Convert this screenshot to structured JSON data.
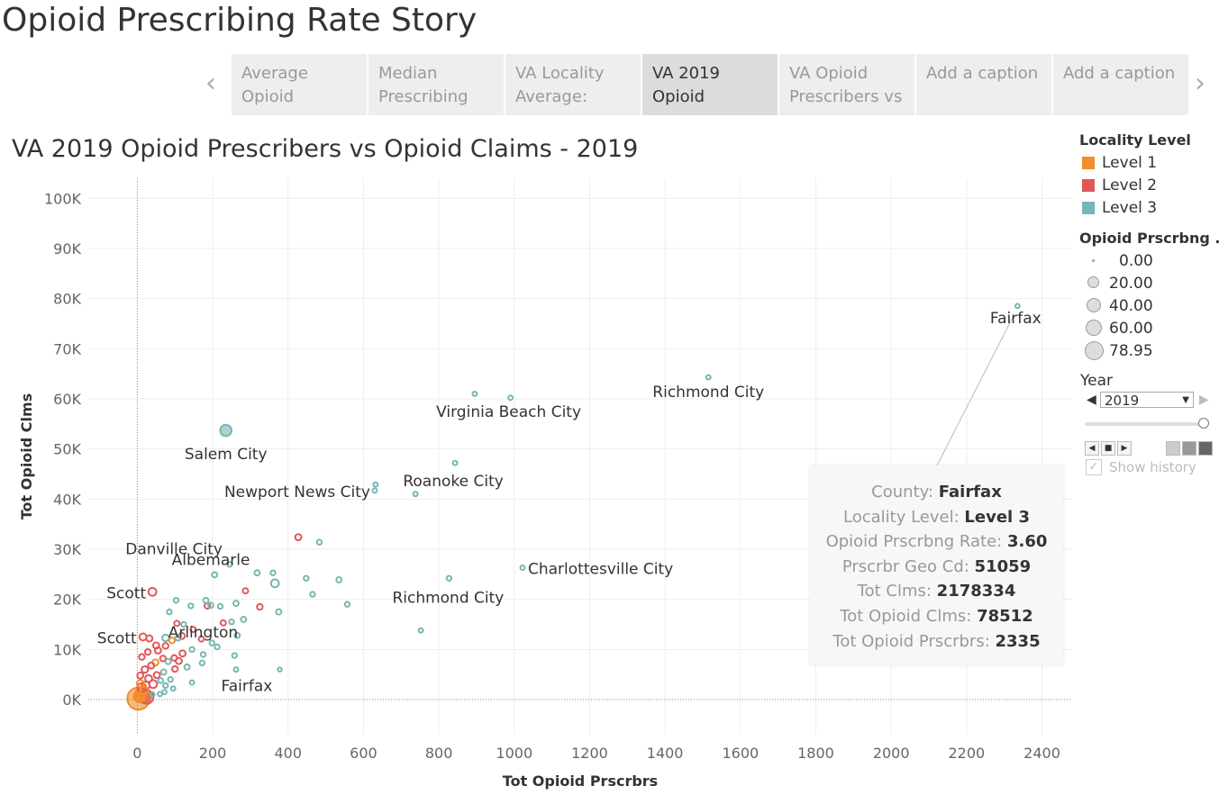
{
  "story": {
    "title": "Opioid Prescribing Rate Story",
    "tabs": [
      {
        "line1": "Average",
        "line2": "Opioid"
      },
      {
        "line1": "Median",
        "line2": "Prescribing"
      },
      {
        "line1": "VA Locality",
        "line2": "Average:"
      },
      {
        "line1": "VA 2019",
        "line2": "Opioid"
      },
      {
        "line1": "VA Opioid",
        "line2": "Prescribers vs"
      },
      {
        "line1": "Add a caption",
        "line2": ""
      },
      {
        "line1": "Add a caption",
        "line2": ""
      }
    ],
    "prev_glyph": "‹",
    "next_glyph": "›"
  },
  "sheet_title": "VA 2019 Opioid Prescribers vs Opioid Claims - 2019",
  "legend": {
    "locality_title": "Locality Level",
    "levels": [
      {
        "label": "Level 1",
        "color": "#f28e2b"
      },
      {
        "label": "Level 2",
        "color": "#e15759"
      },
      {
        "label": "Level 3",
        "color": "#76b7b2"
      }
    ],
    "size_title": "Opioid Prscrbng ..",
    "sizes": [
      "0.00",
      "20.00",
      "40.00",
      "60.00",
      "78.95"
    ]
  },
  "year_filter": {
    "title": "Year",
    "selected": "2019",
    "show_history": "Show history"
  },
  "tooltip": {
    "rows": [
      {
        "label": "County:",
        "value": "Fairfax"
      },
      {
        "label": "Locality Level:",
        "value": "Level 3"
      },
      {
        "label": "Opioid Prscrbng Rate:",
        "value": "3.60"
      },
      {
        "label": "Prscrbr Geo Cd:",
        "value": "51059"
      },
      {
        "label": "Tot Clms:",
        "value": "2178334"
      },
      {
        "label": "Tot Opioid Clms:",
        "value": "78512"
      },
      {
        "label": "Tot Opioid Prscrbrs:",
        "value": "2335"
      }
    ]
  },
  "chart_data": {
    "type": "scatter",
    "xlabel": "Tot Opioid Prscrbrs",
    "ylabel": "Tot Opioid Clms",
    "xlim": [
      -130,
      2480
    ],
    "ylim": [
      -7000,
      104000
    ],
    "xticks": [
      0,
      200,
      400,
      600,
      800,
      1000,
      1200,
      1400,
      1600,
      1800,
      2000,
      2200,
      2400
    ],
    "yticks": [
      0,
      10000,
      20000,
      30000,
      40000,
      50000,
      60000,
      70000,
      80000,
      90000,
      100000
    ],
    "ytick_labels": [
      "0K",
      "10K",
      "20K",
      "30K",
      "40K",
      "50K",
      "60K",
      "70K",
      "80K",
      "90K",
      "100K"
    ],
    "grid": true,
    "colors": {
      "Level 1": "#f28e2b",
      "Level 2": "#e15759",
      "Level 3": "#76b7b2"
    },
    "points": [
      {
        "x": 2335,
        "y": 78512,
        "level": "Level 3",
        "rate": 3.6
      },
      {
        "x": 1515,
        "y": 64300,
        "level": "Level 3",
        "rate": 4
      },
      {
        "x": 895,
        "y": 61000,
        "level": "Level 3",
        "rate": 4
      },
      {
        "x": 990,
        "y": 60200,
        "level": "Level 3",
        "rate": 4
      },
      {
        "x": 235,
        "y": 53700,
        "level": "Level 3",
        "rate": 20
      },
      {
        "x": 843,
        "y": 47200,
        "level": "Level 3",
        "rate": 4
      },
      {
        "x": 632,
        "y": 42900,
        "level": "Level 3",
        "rate": 4
      },
      {
        "x": 630,
        "y": 41700,
        "level": "Level 3",
        "rate": 4
      },
      {
        "x": 738,
        "y": 41000,
        "level": "Level 3",
        "rate": 4
      },
      {
        "x": 427,
        "y": 32400,
        "level": "Level 2",
        "rate": 8
      },
      {
        "x": 483,
        "y": 31400,
        "level": "Level 3",
        "rate": 5
      },
      {
        "x": 1022,
        "y": 26300,
        "level": "Level 3",
        "rate": 4
      },
      {
        "x": 827,
        "y": 24200,
        "level": "Level 3",
        "rate": 5
      },
      {
        "x": 40,
        "y": 21500,
        "level": "Level 2",
        "rate": 12
      },
      {
        "x": 752,
        "y": 13800,
        "level": "Level 3",
        "rate": 4
      },
      {
        "x": 378,
        "y": 6000,
        "level": "Level 3",
        "rate": 3
      },
      {
        "x": 245,
        "y": 27000,
        "level": "Level 3",
        "rate": 5
      },
      {
        "x": 318,
        "y": 25300,
        "level": "Level 3",
        "rate": 6
      },
      {
        "x": 360,
        "y": 25300,
        "level": "Level 3",
        "rate": 5
      },
      {
        "x": 365,
        "y": 23200,
        "level": "Level 3",
        "rate": 12
      },
      {
        "x": 448,
        "y": 24200,
        "level": "Level 3",
        "rate": 5
      },
      {
        "x": 535,
        "y": 23900,
        "level": "Level 3",
        "rate": 6
      },
      {
        "x": 205,
        "y": 24900,
        "level": "Level 3",
        "rate": 6
      },
      {
        "x": 195,
        "y": 18800,
        "level": "Level 3",
        "rate": 6
      },
      {
        "x": 465,
        "y": 21000,
        "level": "Level 3",
        "rate": 5
      },
      {
        "x": 557,
        "y": 19000,
        "level": "Level 3",
        "rate": 5
      },
      {
        "x": 325,
        "y": 18500,
        "level": "Level 2",
        "rate": 7
      },
      {
        "x": 220,
        "y": 18600,
        "level": "Level 3",
        "rate": 5
      },
      {
        "x": 287,
        "y": 21700,
        "level": "Level 2",
        "rate": 6
      },
      {
        "x": 262,
        "y": 19200,
        "level": "Level 3",
        "rate": 6
      },
      {
        "x": 282,
        "y": 16000,
        "level": "Level 3",
        "rate": 6
      },
      {
        "x": 375,
        "y": 17500,
        "level": "Level 3",
        "rate": 6
      },
      {
        "x": 250,
        "y": 15500,
        "level": "Level 3",
        "rate": 5
      },
      {
        "x": 228,
        "y": 15300,
        "level": "Level 2",
        "rate": 6
      },
      {
        "x": 265,
        "y": 12800,
        "level": "Level 3",
        "rate": 6
      },
      {
        "x": 212,
        "y": 10500,
        "level": "Level 3",
        "rate": 5
      },
      {
        "x": 258,
        "y": 8800,
        "level": "Level 3",
        "rate": 5
      },
      {
        "x": 262,
        "y": 6000,
        "level": "Level 3",
        "rate": 4
      },
      {
        "x": 182,
        "y": 19800,
        "level": "Level 3",
        "rate": 6
      },
      {
        "x": 186,
        "y": 18700,
        "level": "Level 2",
        "rate": 7
      },
      {
        "x": 142,
        "y": 18700,
        "level": "Level 3",
        "rate": 5
      },
      {
        "x": 103,
        "y": 19800,
        "level": "Level 3",
        "rate": 5
      },
      {
        "x": 123,
        "y": 15000,
        "level": "Level 3",
        "rate": 5
      },
      {
        "x": 105,
        "y": 15200,
        "level": "Level 2",
        "rate": 6
      },
      {
        "x": 85,
        "y": 17500,
        "level": "Level 3",
        "rate": 5
      },
      {
        "x": 148,
        "y": 14000,
        "level": "Level 2",
        "rate": 6
      },
      {
        "x": 170,
        "y": 12100,
        "level": "Level 2",
        "rate": 6
      },
      {
        "x": 198,
        "y": 11300,
        "level": "Level 3",
        "rate": 5
      },
      {
        "x": 145,
        "y": 10000,
        "level": "Level 3",
        "rate": 5
      },
      {
        "x": 175,
        "y": 9000,
        "level": "Level 3",
        "rate": 5
      },
      {
        "x": 172,
        "y": 7300,
        "level": "Level 3",
        "rate": 5
      },
      {
        "x": 145,
        "y": 3400,
        "level": "Level 3",
        "rate": 4
      },
      {
        "x": 95,
        "y": 2200,
        "level": "Level 3",
        "rate": 4
      },
      {
        "x": 118,
        "y": 12700,
        "level": "Level 2",
        "rate": 8
      },
      {
        "x": 108,
        "y": 12300,
        "level": "Level 3",
        "rate": 6
      },
      {
        "x": 92,
        "y": 11800,
        "level": "Level 1",
        "rate": 7
      },
      {
        "x": 75,
        "y": 12300,
        "level": "Level 3",
        "rate": 9
      },
      {
        "x": 75,
        "y": 10700,
        "level": "Level 2",
        "rate": 7
      },
      {
        "x": 15,
        "y": 12500,
        "level": "Level 2",
        "rate": 10
      },
      {
        "x": 32,
        "y": 12200,
        "level": "Level 2",
        "rate": 8
      },
      {
        "x": 50,
        "y": 10800,
        "level": "Level 2",
        "rate": 8
      },
      {
        "x": 55,
        "y": 9800,
        "level": "Level 2",
        "rate": 8
      },
      {
        "x": 28,
        "y": 9500,
        "level": "Level 2",
        "rate": 7
      },
      {
        "x": 12,
        "y": 8500,
        "level": "Level 2",
        "rate": 7
      },
      {
        "x": 120,
        "y": 9200,
        "level": "Level 2",
        "rate": 8
      },
      {
        "x": 132,
        "y": 6500,
        "level": "Level 3",
        "rate": 6
      },
      {
        "x": 110,
        "y": 7700,
        "level": "Level 2",
        "rate": 8
      },
      {
        "x": 98,
        "y": 8300,
        "level": "Level 2",
        "rate": 7
      },
      {
        "x": 82,
        "y": 7600,
        "level": "Level 3",
        "rate": 6
      },
      {
        "x": 68,
        "y": 8200,
        "level": "Level 2",
        "rate": 7
      },
      {
        "x": 48,
        "y": 7400,
        "level": "Level 1",
        "rate": 8
      },
      {
        "x": 37,
        "y": 6800,
        "level": "Level 2",
        "rate": 8
      },
      {
        "x": 20,
        "y": 6000,
        "level": "Level 2",
        "rate": 9
      },
      {
        "x": 100,
        "y": 6100,
        "level": "Level 2",
        "rate": 7
      },
      {
        "x": 70,
        "y": 5500,
        "level": "Level 3",
        "rate": 6
      },
      {
        "x": 52,
        "y": 4900,
        "level": "Level 2",
        "rate": 8
      },
      {
        "x": 88,
        "y": 4000,
        "level": "Level 3",
        "rate": 5
      },
      {
        "x": 62,
        "y": 3800,
        "level": "Level 3",
        "rate": 5
      },
      {
        "x": 8,
        "y": 4800,
        "level": "Level 2",
        "rate": 8
      },
      {
        "x": 30,
        "y": 4200,
        "level": "Level 2",
        "rate": 10
      },
      {
        "x": 42,
        "y": 3100,
        "level": "Level 2",
        "rate": 12
      },
      {
        "x": 75,
        "y": 2800,
        "level": "Level 3",
        "rate": 5
      },
      {
        "x": 72,
        "y": 1500,
        "level": "Level 3",
        "rate": 4
      },
      {
        "x": 60,
        "y": 1100,
        "level": "Level 3",
        "rate": 4
      },
      {
        "x": 40,
        "y": 1000,
        "level": "Level 3",
        "rate": 4
      },
      {
        "x": 22,
        "y": 2800,
        "level": "Level 2",
        "rate": 12
      },
      {
        "x": 18,
        "y": 1800,
        "level": "Level 1",
        "rate": 12
      },
      {
        "x": 12,
        "y": 2400,
        "level": "Level 2",
        "rate": 14
      },
      {
        "x": 8,
        "y": 1200,
        "level": "Level 1",
        "rate": 18
      },
      {
        "x": 5,
        "y": 600,
        "level": "Level 1",
        "rate": 20
      },
      {
        "x": 3,
        "y": 200,
        "level": "Level 1",
        "rate": 45
      },
      {
        "x": 15,
        "y": 900,
        "level": "Level 1",
        "rate": 30
      },
      {
        "x": 25,
        "y": 500,
        "level": "Level 2",
        "rate": 25
      },
      {
        "x": 8,
        "y": 3200,
        "level": "Level 1",
        "rate": 10
      }
    ],
    "annotations": [
      {
        "text": "Fairfax",
        "x": 2335,
        "y": 78512,
        "dx": -2,
        "dy": 19,
        "anchor": "middle"
      },
      {
        "text": "Richmond City",
        "x": 1515,
        "y": 64300,
        "dx": 0,
        "dy": 22,
        "anchor": "middle"
      },
      {
        "text": "Virginia Beach City",
        "x": 990,
        "y": 60200,
        "dx": -2,
        "dy": 21,
        "anchor": "middle"
      },
      {
        "text": "Salem City",
        "x": 235,
        "y": 53700,
        "dx": 0,
        "dy": 32,
        "anchor": "middle"
      },
      {
        "text": "Newport News City",
        "x": 630,
        "y": 41700,
        "dx": -5,
        "dy": 7,
        "anchor": "end"
      },
      {
        "text": "Roanoke City",
        "x": 843,
        "y": 47200,
        "dx": -2,
        "dy": 26,
        "anchor": "middle"
      },
      {
        "text": "Danville City",
        "x": 40,
        "y": 21500,
        "dx": 24,
        "dy": -42,
        "anchor": "middle"
      },
      {
        "text": "Albemarle",
        "x": 427,
        "y": 32400,
        "dx": -97,
        "dy": 31,
        "anchor": "middle"
      },
      {
        "text": "Charlottesville City",
        "x": 1022,
        "y": 26300,
        "dx": 6,
        "dy": 7,
        "anchor": "start"
      },
      {
        "text": "Richmond City",
        "x": 827,
        "y": 24200,
        "dx": -1,
        "dy": 27,
        "anchor": "middle"
      },
      {
        "text": "Scott",
        "x": 40,
        "y": 21500,
        "dx": -7,
        "dy": 7,
        "anchor": "end"
      },
      {
        "text": "Arlington",
        "x": 483,
        "y": 31400,
        "dx": -129,
        "dy": 106,
        "anchor": "middle"
      },
      {
        "text": "Scott",
        "x": 15,
        "y": 12500,
        "dx": -7,
        "dy": 7,
        "anchor": "end"
      },
      {
        "text": "Fairfax",
        "x": 378,
        "y": 6000,
        "dx": -65,
        "dy": 24,
        "anchor": "start"
      }
    ],
    "highlight": "Fairfax"
  }
}
